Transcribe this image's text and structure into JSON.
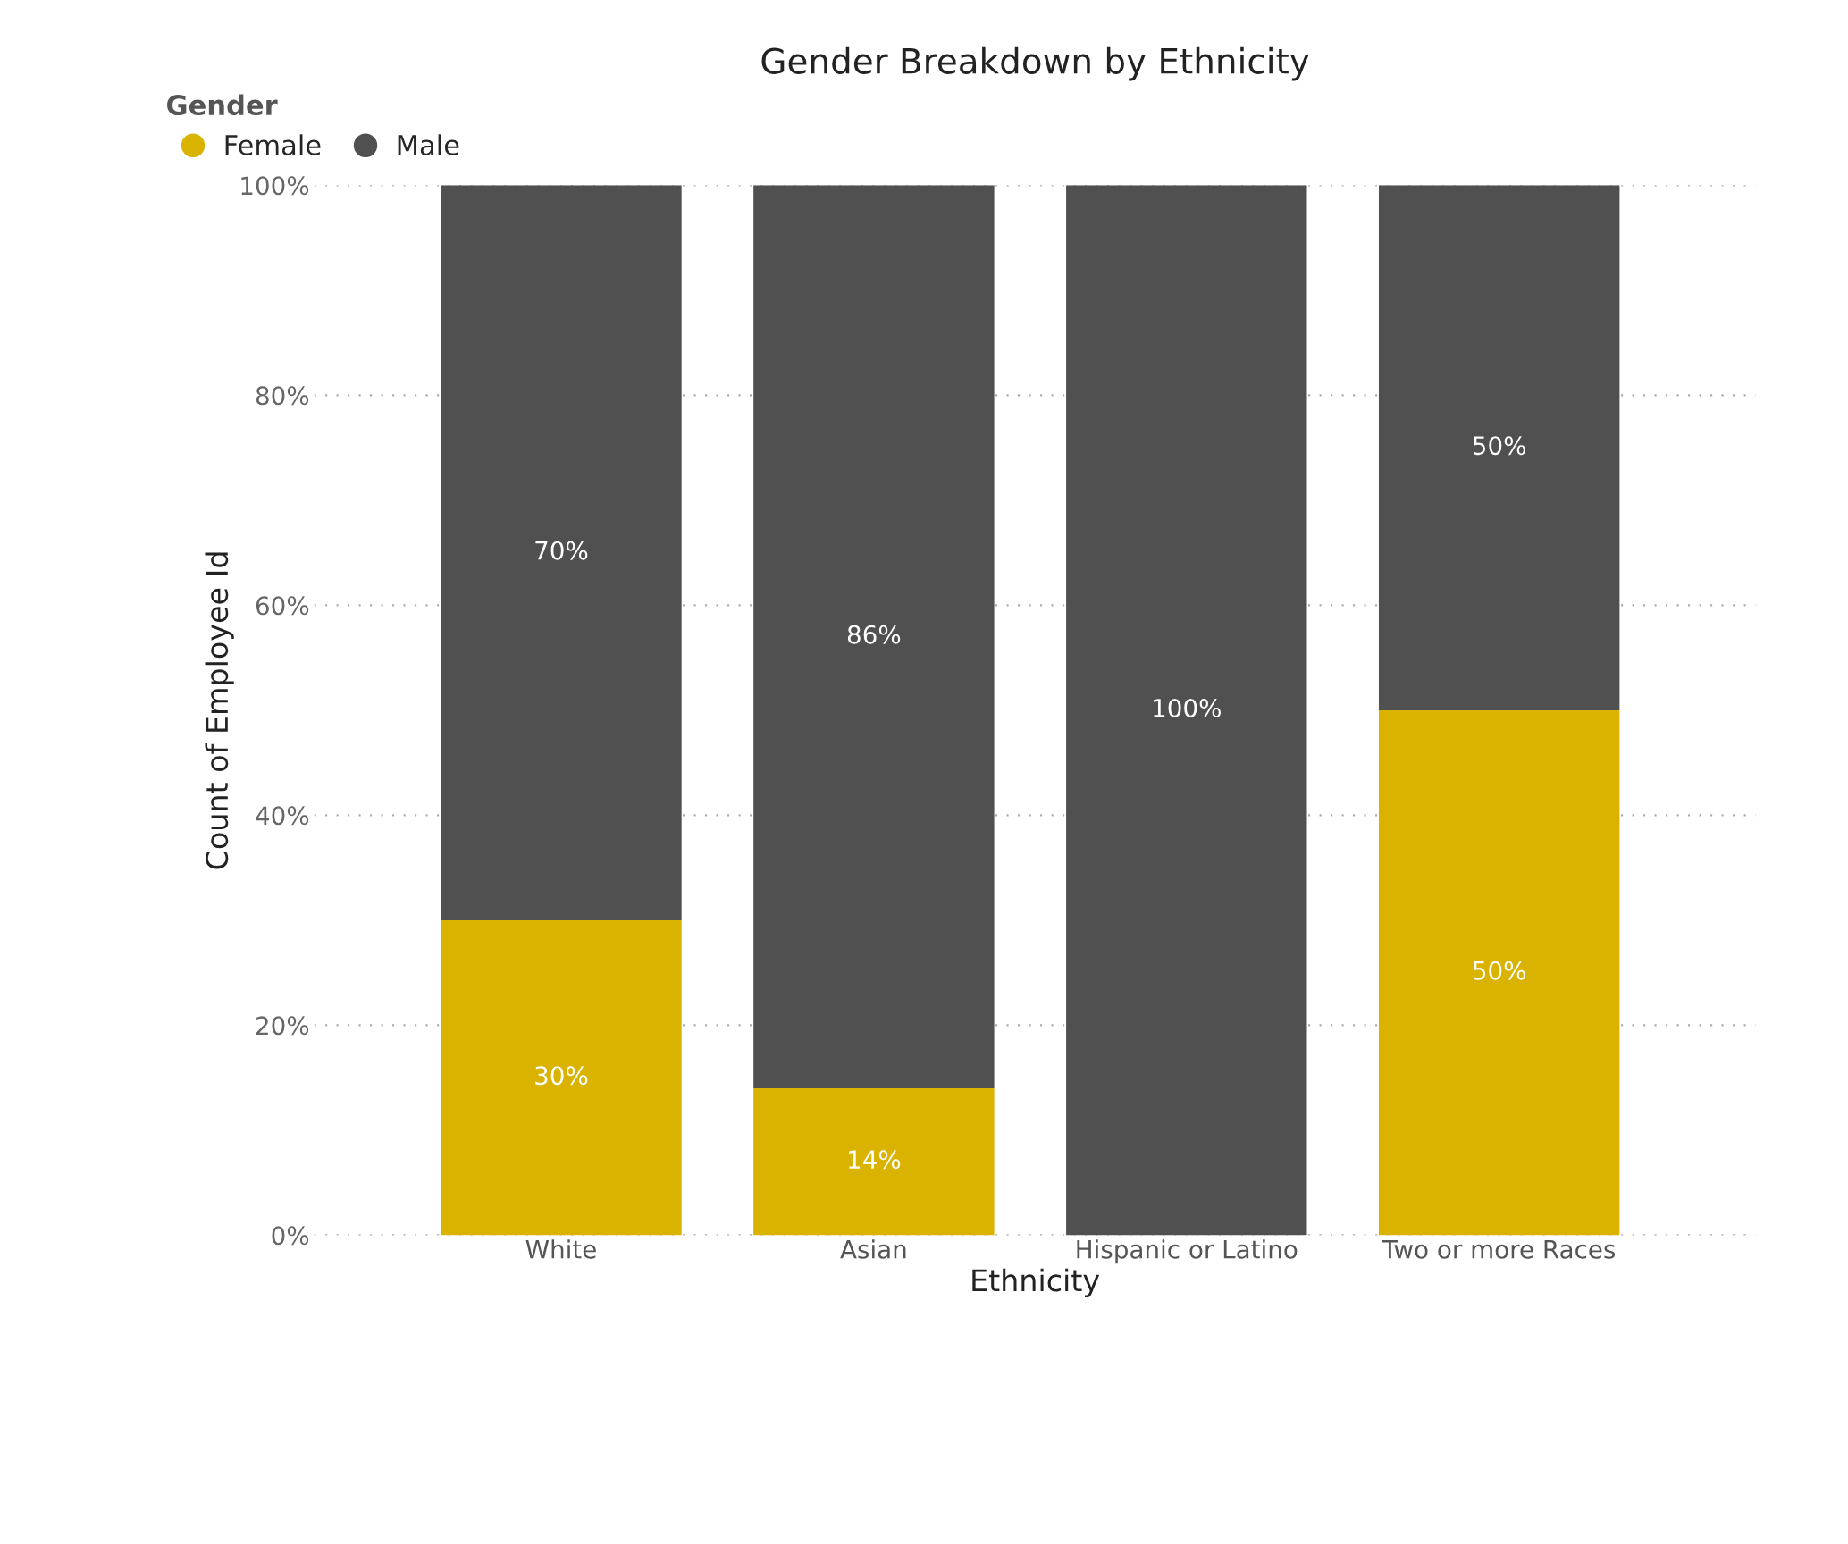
{
  "chart_data": {
    "type": "bar",
    "stacked": true,
    "title": "Gender Breakdown by Ethnicity",
    "xlabel": "Ethnicity",
    "ylabel": "Count of Employee Id",
    "legend_title": "Gender",
    "legend": "top left",
    "grid": "y",
    "categories": [
      "White",
      "Asian",
      "Hispanic or Latino",
      "Two or more Races"
    ],
    "series": [
      {
        "name": "Female",
        "color": "#d9b300",
        "values": [
          30,
          14,
          0,
          50
        ],
        "value_labels": [
          "30%",
          "14%",
          null,
          "50%"
        ]
      },
      {
        "name": "Male",
        "color": "#505050",
        "values": [
          70,
          86,
          100,
          50
        ],
        "value_labels": [
          "70%",
          "86%",
          "100%",
          "50%"
        ]
      }
    ],
    "ylim": [
      0,
      100
    ],
    "yticks": [
      {
        "value": 0,
        "label": "0%"
      },
      {
        "value": 20,
        "label": "20%"
      },
      {
        "value": 40,
        "label": "40%"
      },
      {
        "value": 60,
        "label": "60%"
      },
      {
        "value": 80,
        "label": "80%"
      },
      {
        "value": 100,
        "label": "100%"
      }
    ]
  }
}
